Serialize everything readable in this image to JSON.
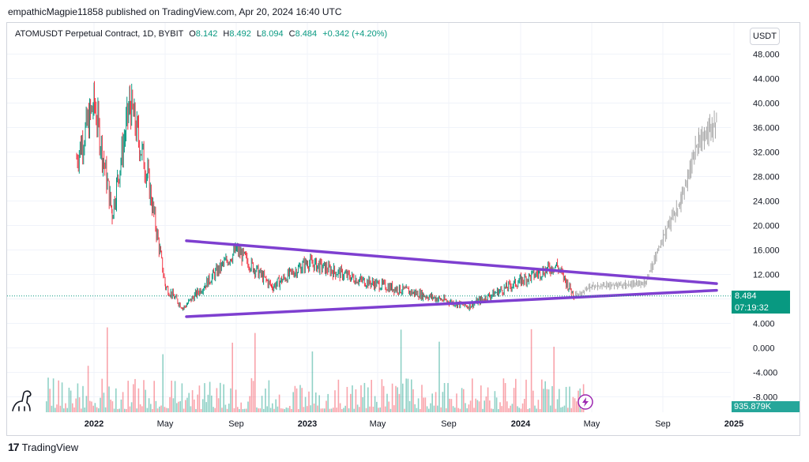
{
  "caption": "empathicMagpie11858 published on TradingView.com, Apr 20, 2024 16:40 UTC",
  "legend": {
    "symbol": "ATOMUSDT Perpetual Contract, 1D, BYBIT",
    "o_label": "O",
    "o_value": "8.142",
    "h_label": "H",
    "h_value": "8.492",
    "l_label": "L",
    "l_value": "8.094",
    "c_label": "C",
    "c_value": "8.484",
    "change": "+0.342 (+4.20%)"
  },
  "currency": "USDT",
  "last_price": "8.484",
  "countdown": "07:19:32",
  "volume_label": "935.879K",
  "footer": {
    "brand": "TradingView"
  },
  "colors": {
    "up": "#089981",
    "down": "#f23645",
    "trendline": "#7e3fd0",
    "bullish": "#26a69a"
  },
  "chart_data": {
    "type": "candlestick",
    "title": "ATOMUSDT Perpetual Contract, 1D, BYBIT",
    "ylabel": "USDT",
    "ylim": [
      -10,
      52
    ],
    "y_ticks": [
      "48.000",
      "44.000",
      "40.000",
      "36.000",
      "32.000",
      "28.000",
      "24.000",
      "20.000",
      "16.000",
      "12.000",
      "8.000",
      "4.000",
      "0.000",
      "-4.000",
      "-8.000"
    ],
    "x_ticks": [
      "2022",
      "May",
      "Sep",
      "2023",
      "May",
      "Sep",
      "2024",
      "May",
      "Sep",
      "2025"
    ],
    "price_path": [
      {
        "t": "2021-12",
        "v": 31
      },
      {
        "t": "2022-01",
        "v": 40
      },
      {
        "t": "2022-02",
        "v": 22
      },
      {
        "t": "2022-03",
        "v": 40
      },
      {
        "t": "2022-04",
        "v": 28
      },
      {
        "t": "2022-05",
        "v": 10
      },
      {
        "t": "2022-06",
        "v": 6.5
      },
      {
        "t": "2022-09",
        "v": 16
      },
      {
        "t": "2022-11",
        "v": 10
      },
      {
        "t": "2023-01",
        "v": 14
      },
      {
        "t": "2023-04",
        "v": 11
      },
      {
        "t": "2023-07",
        "v": 9
      },
      {
        "t": "2023-10",
        "v": 6.8
      },
      {
        "t": "2024-01",
        "v": 11
      },
      {
        "t": "2024-03",
        "v": 13.5
      },
      {
        "t": "2024-04",
        "v": 8.48
      }
    ],
    "projection_path": [
      {
        "t": "2024-05",
        "v": 10
      },
      {
        "t": "2024-08",
        "v": 10.5
      },
      {
        "t": "2024-09",
        "v": 18
      },
      {
        "t": "2024-10",
        "v": 24
      },
      {
        "t": "2024-11",
        "v": 34
      },
      {
        "t": "2024-12",
        "v": 37
      }
    ],
    "trendlines": [
      {
        "name": "upper",
        "start": {
          "t": "2022-06",
          "v": 17.5
        },
        "end": {
          "t": "2024-12",
          "v": 10.5
        }
      },
      {
        "name": "lower",
        "start": {
          "t": "2022-06",
          "v": 5.1
        },
        "end": {
          "t": "2024-12",
          "v": 9.4
        }
      }
    ],
    "last_price": 8.484
  }
}
